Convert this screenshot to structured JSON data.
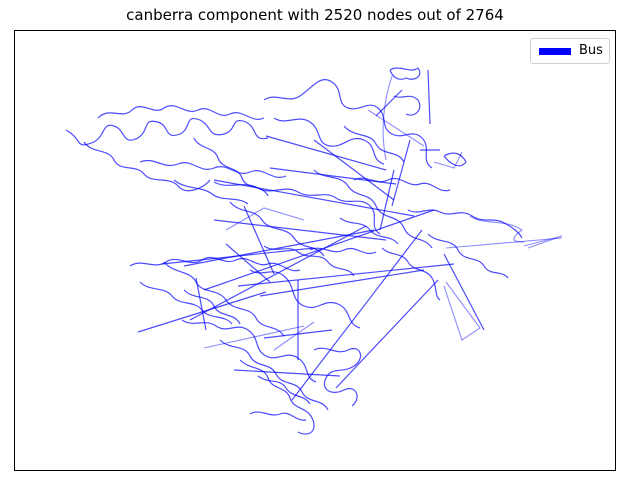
{
  "title": "canberra component with 2520 nodes out of 2764",
  "legend": {
    "items": [
      {
        "label": "Bus",
        "color": "#0000ff"
      }
    ],
    "placement": "top-right"
  },
  "map": {
    "line_color": "#0000ff",
    "axes_visible": false,
    "grid": false
  }
}
